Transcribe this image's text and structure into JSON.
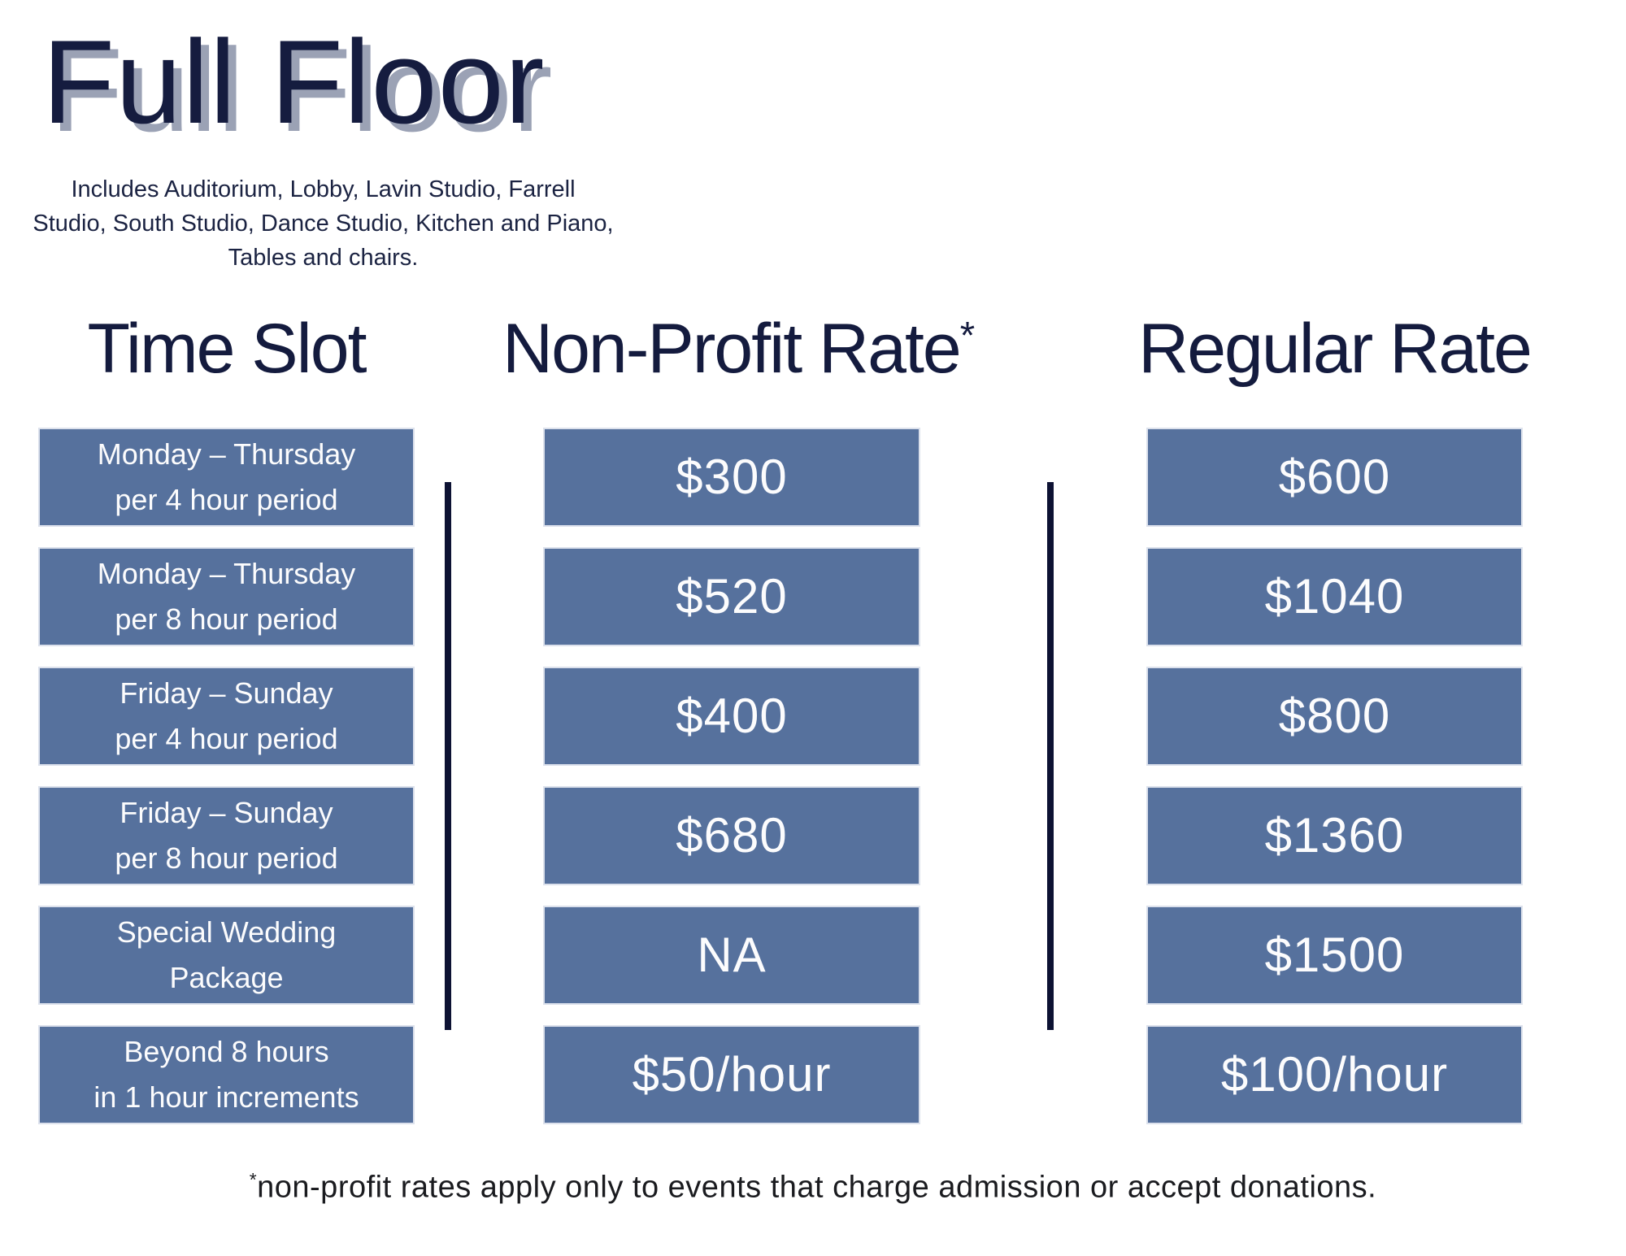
{
  "title": "Full Floor",
  "subtitle": "Includes Auditorium, Lobby, Lavin Studio, Farrell Studio, South Studio, Dance Studio, Kitchen and Piano, Tables and chairs.",
  "table": {
    "headers": {
      "time_slot": "Time Slot",
      "nonprofit": "Non-Profit Rate",
      "nonprofit_asterisk": "*",
      "regular": "Regular Rate"
    },
    "rows": [
      {
        "slot_line1": "Monday – Thursday",
        "slot_line2": "per 4 hour period",
        "nonprofit": "$300",
        "regular": "$600"
      },
      {
        "slot_line1": "Monday – Thursday",
        "slot_line2": "per 8 hour period",
        "nonprofit": "$520",
        "regular": "$1040"
      },
      {
        "slot_line1": "Friday – Sunday",
        "slot_line2": "per 4 hour period",
        "nonprofit": "$400",
        "regular": "$800"
      },
      {
        "slot_line1": "Friday – Sunday",
        "slot_line2": "per 8 hour period",
        "nonprofit": "$680",
        "regular": "$1360"
      },
      {
        "slot_line1": "Special Wedding",
        "slot_line2": "Package",
        "nonprofit": "NA",
        "regular": "$1500"
      },
      {
        "slot_line1": "Beyond 8 hours",
        "slot_line2": "in 1 hour increments",
        "nonprofit": "$50/hour",
        "regular": "$100/hour"
      }
    ]
  },
  "footnote": {
    "asterisk": "*",
    "text": "non-profit rates apply only to events that charge admission or accept donations."
  },
  "colors": {
    "cell_blue": "#56719d",
    "cell_border": "#dce1ec",
    "divider_navy": "#0d1233",
    "title_navy": "#151c3f",
    "title_shadow_gray": "#9ba2b5",
    "body_text_white": "#fcfcfd",
    "footnote_black": "#1a1b1f"
  }
}
